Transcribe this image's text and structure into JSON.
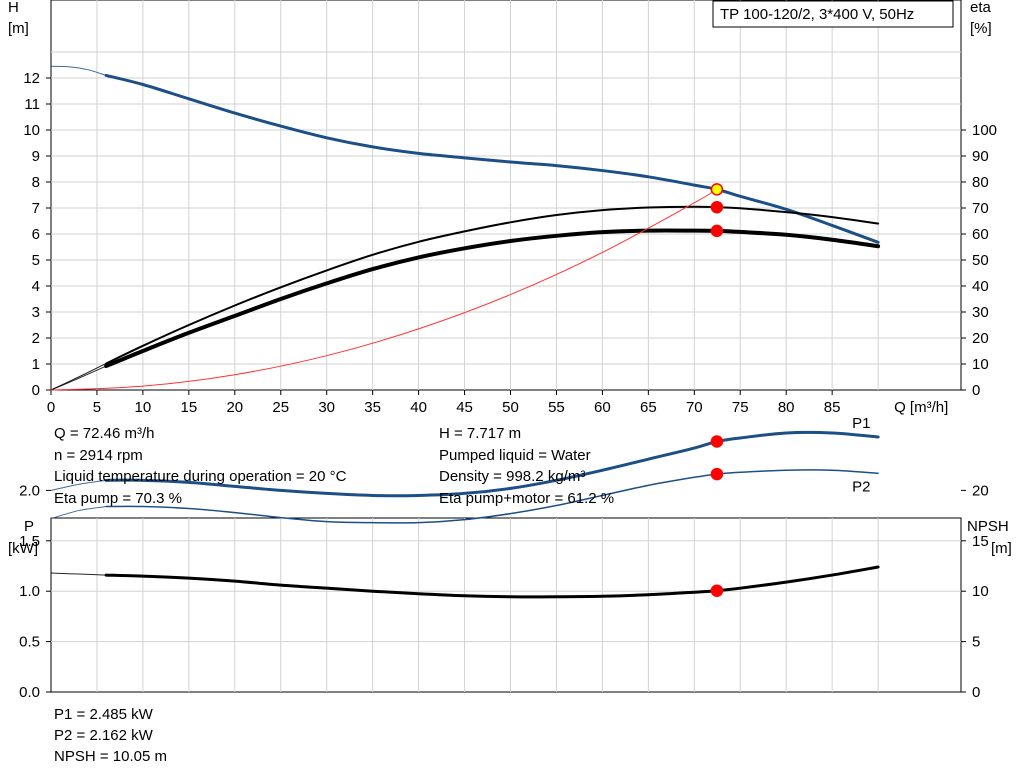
{
  "chart_data": [
    {
      "type": "line",
      "title": "TP 100-120/2, 3*400 V, 50Hz",
      "xlabel": "Q [m³/h]",
      "ylabel_left": [
        "H",
        "[m]"
      ],
      "ylabel_right": [
        "eta",
        "[%]"
      ],
      "xlim": [
        0,
        90
      ],
      "ylim_left": [
        0,
        13
      ],
      "ylim_right": [
        0,
        130
      ],
      "x_ticks": [
        "0",
        "5",
        "10",
        "15",
        "20",
        "25",
        "30",
        "35",
        "40",
        "45",
        "50",
        "55",
        "60",
        "65",
        "70",
        "75",
        "80",
        "85"
      ],
      "y_ticks_left": [
        "0",
        "1",
        "2",
        "3",
        "4",
        "5",
        "6",
        "7",
        "8",
        "9",
        "10",
        "11",
        "12"
      ],
      "y_ticks_right": [
        "0",
        "10",
        "20",
        "30",
        "40",
        "50",
        "60",
        "70",
        "80",
        "90",
        "100"
      ],
      "grid": true,
      "series": [
        {
          "id": "H",
          "axis": "left",
          "color": "#1c4f87",
          "width": 3,
          "ext_x": [
            0,
            2,
            4,
            6
          ],
          "ext_y": [
            12.45,
            12.43,
            12.32,
            12.1
          ],
          "x": [
            6,
            10,
            15,
            20,
            25,
            30,
            35,
            40,
            45,
            50,
            55,
            60,
            65,
            70,
            72.46,
            75,
            80,
            85,
            90
          ],
          "y": [
            12.1,
            11.75,
            11.2,
            10.65,
            10.15,
            9.7,
            9.35,
            9.1,
            8.93,
            8.77,
            8.63,
            8.44,
            8.2,
            7.88,
            7.717,
            7.45,
            6.95,
            6.33,
            5.68
          ]
        },
        {
          "id": "eta_pump",
          "axis": "right",
          "color": "#000000",
          "width": 2,
          "ext_x": [
            0,
            3,
            6
          ],
          "ext_y": [
            0,
            5,
            10.2
          ],
          "x": [
            6,
            10,
            15,
            20,
            25,
            30,
            35,
            40,
            45,
            50,
            55,
            60,
            65,
            70,
            72.46,
            75,
            80,
            85,
            90
          ],
          "y": [
            10.2,
            17,
            25,
            32.5,
            39.5,
            46,
            52,
            57,
            61,
            64.5,
            67.3,
            69.2,
            70.2,
            70.5,
            70.3,
            69.9,
            68.4,
            66.5,
            64
          ]
        },
        {
          "id": "eta_pump_motor",
          "axis": "right",
          "color": "#000000",
          "width": 4,
          "ext_x": [
            0,
            3,
            6
          ],
          "ext_y": [
            0,
            4.5,
            9.2
          ],
          "x": [
            6,
            10,
            15,
            20,
            25,
            30,
            35,
            40,
            45,
            50,
            55,
            60,
            65,
            70,
            72.46,
            75,
            80,
            85,
            90
          ],
          "y": [
            9.2,
            15,
            22,
            28.5,
            35,
            41,
            46.5,
            51,
            54.5,
            57.3,
            59.3,
            60.7,
            61.3,
            61.3,
            61.2,
            60.8,
            59.7,
            57.8,
            55.3
          ]
        },
        {
          "id": "system_curve",
          "axis": "left",
          "color": "#ff3333",
          "width": 1,
          "x": [
            0,
            10,
            20,
            30,
            40,
            50,
            60,
            70,
            72.46
          ],
          "y": [
            0,
            0.147,
            0.588,
            1.32,
            2.35,
            3.67,
            5.29,
            7.2,
            7.717
          ]
        }
      ],
      "points": [
        {
          "series": "H",
          "x": 72.46,
          "y": 7.717,
          "fill": "#ffff00",
          "stroke": "#ff0000"
        },
        {
          "series": "eta_pump",
          "x": 72.46,
          "y": 70.3,
          "fill": "#ff0000",
          "stroke": "#ff0000"
        },
        {
          "series": "eta_pump_motor",
          "x": 72.46,
          "y": 61.2,
          "fill": "#ff0000",
          "stroke": "#ff0000"
        }
      ]
    },
    {
      "type": "line",
      "ylabel_left": [
        "P",
        "[kW]"
      ],
      "ylabel_right": [
        "NPSH",
        "[m]"
      ],
      "xlim": [
        0,
        90
      ],
      "ylim_left": [
        0,
        2.5
      ],
      "ylim_right": [
        0,
        25
      ],
      "y_ticks_left": [
        "0.0",
        "0.5",
        "1.0",
        "1.5",
        "2.0"
      ],
      "y_ticks_right": [
        "0",
        "5",
        "10",
        "15",
        "20"
      ],
      "grid": true,
      "series": [
        {
          "id": "P1",
          "name": "P1",
          "axis": "left",
          "color": "#1c4f87",
          "width": 3,
          "ext_x": [
            0,
            3,
            6
          ],
          "ext_y": [
            2.0,
            2.06,
            2.1
          ],
          "x": [
            6,
            10,
            15,
            20,
            25,
            30,
            35,
            40,
            45,
            50,
            55,
            60,
            65,
            70,
            72.46,
            75,
            80,
            85,
            90
          ],
          "y": [
            2.1,
            2.1,
            2.08,
            2.04,
            2.0,
            1.97,
            1.95,
            1.95,
            1.97,
            2.02,
            2.1,
            2.2,
            2.31,
            2.42,
            2.485,
            2.52,
            2.57,
            2.57,
            2.53
          ]
        },
        {
          "id": "P2",
          "name": "P2",
          "axis": "left",
          "color": "#1c4f87",
          "width": 1.5,
          "ext_x": [
            0,
            3,
            6
          ],
          "ext_y": [
            1.72,
            1.8,
            1.84
          ],
          "x": [
            6,
            10,
            15,
            20,
            25,
            30,
            35,
            40,
            45,
            50,
            55,
            60,
            65,
            70,
            72.46,
            75,
            80,
            85,
            90
          ],
          "y": [
            1.84,
            1.84,
            1.82,
            1.78,
            1.73,
            1.69,
            1.68,
            1.68,
            1.71,
            1.77,
            1.85,
            1.95,
            2.05,
            2.13,
            2.162,
            2.18,
            2.2,
            2.2,
            2.17
          ]
        },
        {
          "id": "NPSH",
          "axis": "right",
          "color": "#000000",
          "width": 3,
          "ext_x": [
            0,
            3,
            6
          ],
          "ext_y": [
            11.8,
            11.7,
            11.6
          ],
          "x": [
            6,
            10,
            15,
            20,
            25,
            30,
            35,
            40,
            45,
            50,
            55,
            60,
            65,
            70,
            72.46,
            75,
            80,
            85,
            90
          ],
          "y": [
            11.6,
            11.5,
            11.3,
            11.0,
            10.6,
            10.3,
            10.0,
            9.75,
            9.55,
            9.45,
            9.45,
            9.5,
            9.65,
            9.9,
            10.05,
            10.3,
            10.9,
            11.6,
            12.4
          ]
        }
      ],
      "points": [
        {
          "series": "P1",
          "x": 72.46,
          "y": 2.485,
          "fill": "#ff0000",
          "stroke": "#ff0000"
        },
        {
          "series": "P2",
          "x": 72.46,
          "y": 2.162,
          "fill": "#ff0000",
          "stroke": "#ff0000"
        },
        {
          "series": "NPSH",
          "x": 72.46,
          "y": 10.05,
          "fill": "#ff0000",
          "stroke": "#ff0000"
        }
      ]
    }
  ],
  "info_top": {
    "q": "Q = 72.46 m³/h",
    "n": "n = 2914 rpm",
    "temp": "Liquid temperature during operation = 20 °C",
    "eta_pump": "Eta pump = 70.3 %",
    "h": "H = 7.717 m",
    "liquid": "Pumped liquid = Water",
    "density": "Density = 998.2 kg/m³",
    "eta_pump_motor": "Eta pump+motor = 61.2 %"
  },
  "info_bottom": {
    "p1": "P1 = 2.485 kW",
    "p2": "P2 = 2.162 kW",
    "npsh": "NPSH = 10.05 m"
  }
}
